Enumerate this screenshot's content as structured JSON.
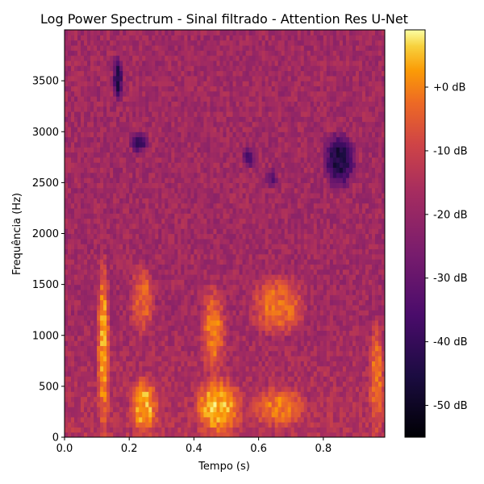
{
  "chart_data": {
    "type": "heatmap",
    "title": "Log Power Spectrum - Sinal filtrado - Attention Res U-Net",
    "xlabel": "Tempo (s)",
    "ylabel": "Frequência (Hz)",
    "xlim": [
      0.0,
      0.99
    ],
    "ylim": [
      0,
      4000
    ],
    "xticks": [
      {
        "value": 0.0,
        "label": "0.0"
      },
      {
        "value": 0.2,
        "label": "0.2"
      },
      {
        "value": 0.4,
        "label": "0.4"
      },
      {
        "value": 0.6,
        "label": "0.6"
      },
      {
        "value": 0.8,
        "label": "0.8"
      }
    ],
    "yticks": [
      {
        "value": 0,
        "label": "0"
      },
      {
        "value": 500,
        "label": "500"
      },
      {
        "value": 1000,
        "label": "1000"
      },
      {
        "value": 1500,
        "label": "1500"
      },
      {
        "value": 2000,
        "label": "2000"
      },
      {
        "value": 2500,
        "label": "2500"
      },
      {
        "value": 3000,
        "label": "3000"
      },
      {
        "value": 3500,
        "label": "3500"
      }
    ],
    "colormap": "inferno",
    "colorbar": {
      "range_db": [
        -55,
        9
      ],
      "ticks": [
        {
          "value": 0,
          "label": "+0 dB"
        },
        {
          "value": -10,
          "label": "-10 dB"
        },
        {
          "value": -20,
          "label": "-20 dB"
        },
        {
          "value": -30,
          "label": "-30 dB"
        },
        {
          "value": -40,
          "label": "-40 dB"
        },
        {
          "value": -50,
          "label": "-50 dB"
        }
      ]
    },
    "background_level_db": -18,
    "regions": [
      {
        "t": [
          0.1,
          0.14
        ],
        "f": [
          0,
          1800
        ],
        "db": 2
      },
      {
        "t": [
          0.2,
          0.29
        ],
        "f": [
          0,
          600
        ],
        "db": 3
      },
      {
        "t": [
          0.2,
          0.28
        ],
        "f": [
          1000,
          1700
        ],
        "db": -4
      },
      {
        "t": [
          0.4,
          0.55
        ],
        "f": [
          0,
          600
        ],
        "db": 4
      },
      {
        "t": [
          0.42,
          0.5
        ],
        "f": [
          600,
          1500
        ],
        "db": -2
      },
      {
        "t": [
          0.57,
          0.75
        ],
        "f": [
          1000,
          1600
        ],
        "db": -3
      },
      {
        "t": [
          0.57,
          0.75
        ],
        "f": [
          100,
          500
        ],
        "db": -2
      },
      {
        "t": [
          0.94,
          0.99
        ],
        "f": [
          0,
          1200
        ],
        "db": -4
      },
      {
        "t": [
          0.15,
          0.18
        ],
        "f": [
          3300,
          3750
        ],
        "db": -42
      },
      {
        "t": [
          0.2,
          0.26
        ],
        "f": [
          2800,
          3000
        ],
        "db": -38
      },
      {
        "t": [
          0.55,
          0.59
        ],
        "f": [
          2650,
          2850
        ],
        "db": -36
      },
      {
        "t": [
          0.62,
          0.66
        ],
        "f": [
          2450,
          2650
        ],
        "db": -32
      },
      {
        "t": [
          0.8,
          0.9
        ],
        "f": [
          2450,
          3000
        ],
        "db": -44
      }
    ]
  }
}
